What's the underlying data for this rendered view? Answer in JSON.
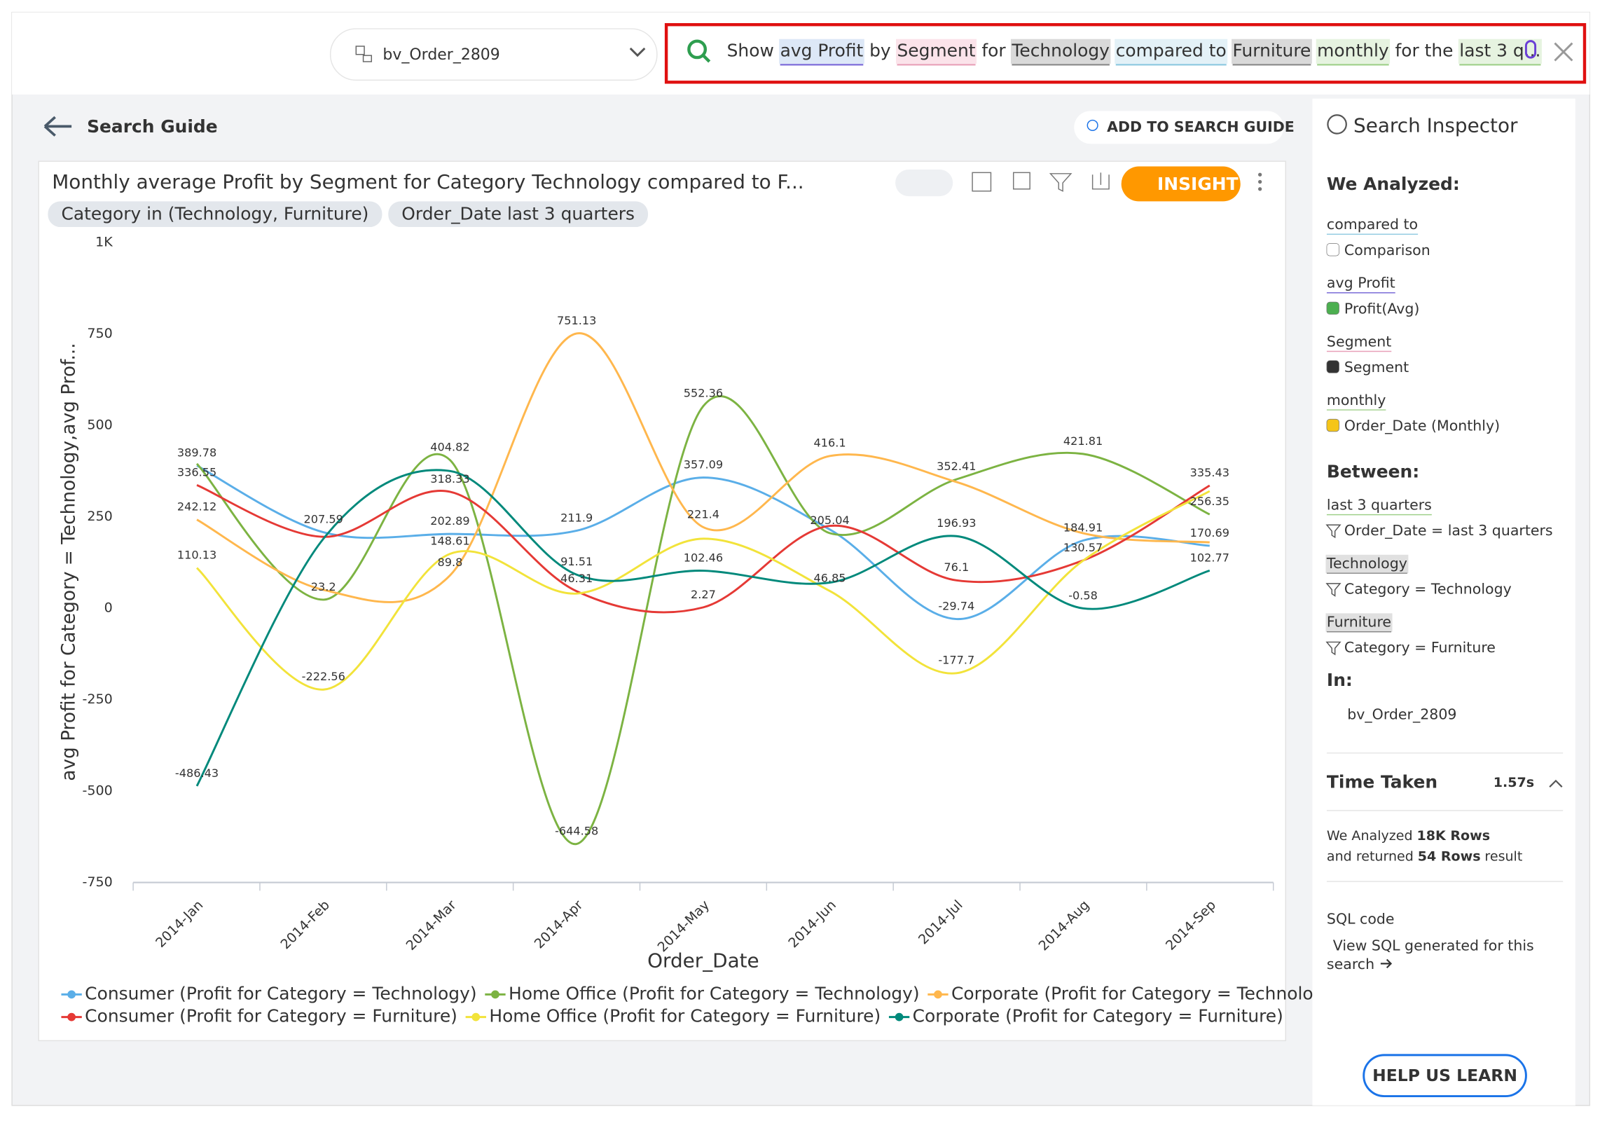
{
  "header": {
    "dataset": "bv_Order_2809",
    "query": [
      "Show",
      "avg Profit",
      "by",
      "Segment",
      "for",
      "Technology",
      "compared to",
      "Furniture",
      "monthly",
      "for the",
      "last 3 q..."
    ]
  },
  "nav": {
    "back": "Search Guide",
    "add": "ADD TO SEARCH GUIDE"
  },
  "card": {
    "title": "Monthly average Profit by Segment for Category Technology compared to F...",
    "insight": "INSIGHT",
    "filters": [
      "Category in (Technology, Furniture)",
      "Order_Date last 3 quarters"
    ]
  },
  "chart_data": {
    "type": "line",
    "x_label": "Order_Date",
    "y_label": "avg Profit for Category = Technology,avg Prof...",
    "categories": [
      "2014-Jan",
      "2014-Feb",
      "2014-Mar",
      "2014-Apr",
      "2014-May",
      "2014-Jun",
      "2014-Jul",
      "2014-Aug",
      "2014-Sep"
    ],
    "ylim": [
      -750,
      1000
    ],
    "yticks": [
      -750,
      -500,
      -250,
      0,
      250,
      500,
      750,
      {
        "value": 1000,
        "label": "1K"
      }
    ],
    "series": [
      {
        "name": "Consumer (Profit for Category = Technology)",
        "color": "#5aaee8",
        "values": [
          389.78,
          207.59,
          202.89,
          211.9,
          357.09,
          215,
          -29.74,
          184.91,
          170.69
        ],
        "value_labels": [
          "389.78",
          "207.59",
          "202.89",
          "211.9",
          "357.09",
          null,
          "-29.74",
          "184.91",
          "170.69"
        ]
      },
      {
        "name": "Home Office (Profit for Category = Technology)",
        "color": "#7cb342",
        "values": [
          395,
          23.2,
          404.82,
          -644.58,
          552.36,
          205.04,
          352.41,
          421.81,
          256.35
        ],
        "value_labels": [
          null,
          "23.2",
          "404.82",
          "-644.58",
          "552.36",
          "205.04",
          "352.41",
          "421.81",
          "256.35"
        ]
      },
      {
        "name": "Corporate (Profit for Category = Technology)",
        "color": "#ffb74d",
        "values": [
          242.12,
          50,
          89.8,
          751.13,
          221.4,
          416.1,
          345,
          205,
          180
        ],
        "value_labels": [
          "242.12",
          null,
          "89.8",
          "751.13",
          "221.4",
          "416.1",
          null,
          null,
          null
        ]
      },
      {
        "name": "Consumer (Profit for Category = Furniture)",
        "color": "#e53935",
        "values": [
          336.55,
          195,
          318.33,
          46.31,
          2.27,
          225,
          76.1,
          130.57,
          335.43
        ],
        "value_labels": [
          "336.55",
          null,
          "318.33",
          "46.31",
          "2.27",
          null,
          "76.1",
          "130.57",
          "335.43"
        ]
      },
      {
        "name": "Home Office (Profit for Category = Furniture)",
        "color": "#f2e33a",
        "values": [
          110.13,
          -222.56,
          148.61,
          40,
          190,
          46.85,
          -177.7,
          130,
          320
        ],
        "value_labels": [
          "110.13",
          "-222.56",
          "148.61",
          null,
          null,
          "46.85",
          "-177.7",
          null,
          null
        ]
      },
      {
        "name": "Corporate (Profit for Category = Furniture)",
        "color": "#00897b",
        "values": [
          -486.43,
          190,
          375,
          91.51,
          102.46,
          70,
          196.93,
          -0.58,
          102.77
        ],
        "value_labels": [
          "-486.43",
          null,
          null,
          "91.51",
          "102.46",
          null,
          "196.93",
          "-0.58",
          "102.77"
        ]
      }
    ]
  },
  "inspector": {
    "title": "Search Inspector",
    "analyzed_heading": "We Analyzed:",
    "analyzed": [
      {
        "term": "compared to",
        "detail": "Comparison"
      },
      {
        "term": "avg Profit",
        "detail": "Profit(Avg)"
      },
      {
        "term": "Segment",
        "detail": "Segment"
      },
      {
        "term": "monthly",
        "detail": "Order_Date (Monthly)"
      }
    ],
    "between_heading": "Between:",
    "between": [
      {
        "term": "last 3 quarters",
        "detail": "Order_Date = last 3 quarters"
      },
      {
        "term": "Technology",
        "detail": "Category = Technology"
      },
      {
        "term": "Furniture",
        "detail": "Category = Furniture"
      }
    ],
    "in_heading": "In:",
    "in": "bv_Order_2809",
    "time_heading": "Time Taken",
    "time": "1.57s",
    "rows_text": [
      "We Analyzed",
      "18K Rows",
      "and returned",
      "54 Rows",
      "result"
    ],
    "sql_heading": "SQL code",
    "sql_link": [
      "View SQL generated for this",
      "search"
    ],
    "help": "HELP US LEARN"
  }
}
